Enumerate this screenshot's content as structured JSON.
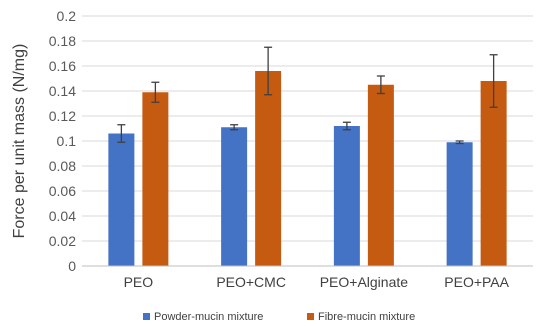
{
  "chart_data": {
    "type": "bar",
    "title": "",
    "xlabel": "",
    "ylabel": "Force per unit mass (N/mg)",
    "ylim": [
      0,
      0.2
    ],
    "yticks": [
      "0",
      "0.02",
      "0.04",
      "0.06",
      "0.08",
      "0.1",
      "0.12",
      "0.14",
      "0.16",
      "0.18",
      "0.2"
    ],
    "ytick_values": [
      0,
      0.02,
      0.04,
      0.06,
      0.08,
      0.1,
      0.12,
      0.14,
      0.16,
      0.18,
      0.2
    ],
    "categories": [
      "PEO",
      "PEO+CMC",
      "PEO+Alginate",
      "PEO+PAA"
    ],
    "grid": true,
    "legend_position": "bottom",
    "series": [
      {
        "name": "Powder-mucin mixture",
        "color": "#4472c4",
        "values": [
          0.106,
          0.111,
          0.112,
          0.099
        ],
        "errors": [
          0.007,
          0.002,
          0.003,
          0.001
        ]
      },
      {
        "name": "Fibre-mucin mixture",
        "color": "#c55a11",
        "values": [
          0.139,
          0.156,
          0.145,
          0.148
        ],
        "errors": [
          0.008,
          0.019,
          0.007,
          0.021
        ]
      }
    ]
  }
}
